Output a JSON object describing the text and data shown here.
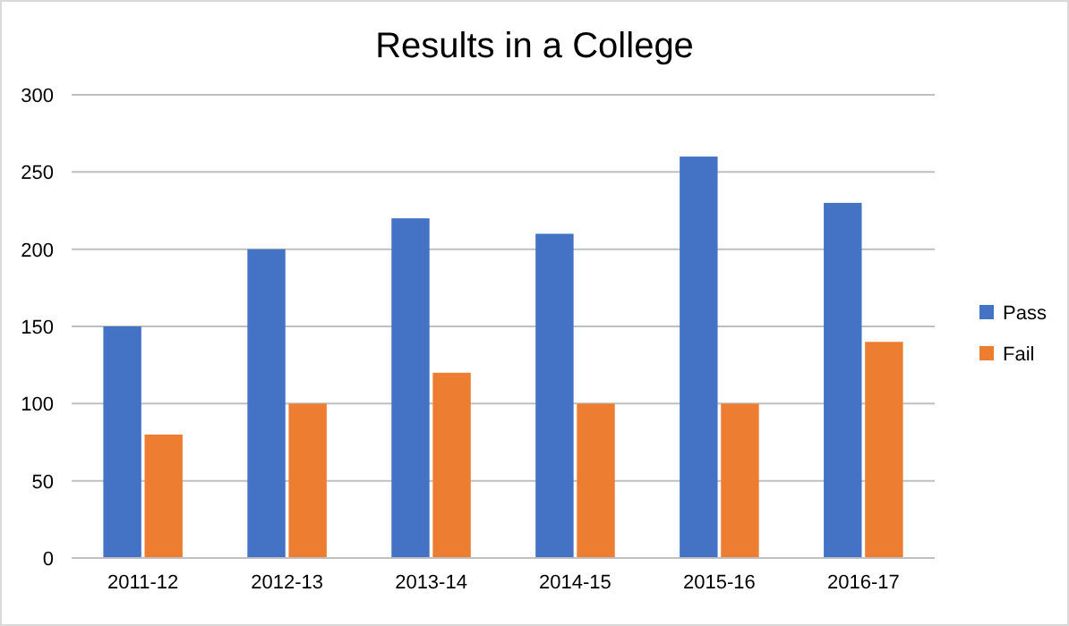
{
  "chart_data": {
    "type": "bar",
    "title": "Results in a College",
    "categories": [
      "2011-12",
      "2012-13",
      "2013-14",
      "2014-15",
      "2015-16",
      "2016-17"
    ],
    "series": [
      {
        "name": "Pass",
        "color": "#4472c4",
        "values": [
          150,
          200,
          220,
          210,
          260,
          230
        ]
      },
      {
        "name": "Fail",
        "color": "#ed7d31",
        "values": [
          80,
          100,
          120,
          100,
          100,
          140
        ]
      }
    ],
    "ylim": [
      0,
      300
    ],
    "yticks": [
      0,
      50,
      100,
      150,
      200,
      250,
      300
    ],
    "grid": "y",
    "legend": "right"
  }
}
